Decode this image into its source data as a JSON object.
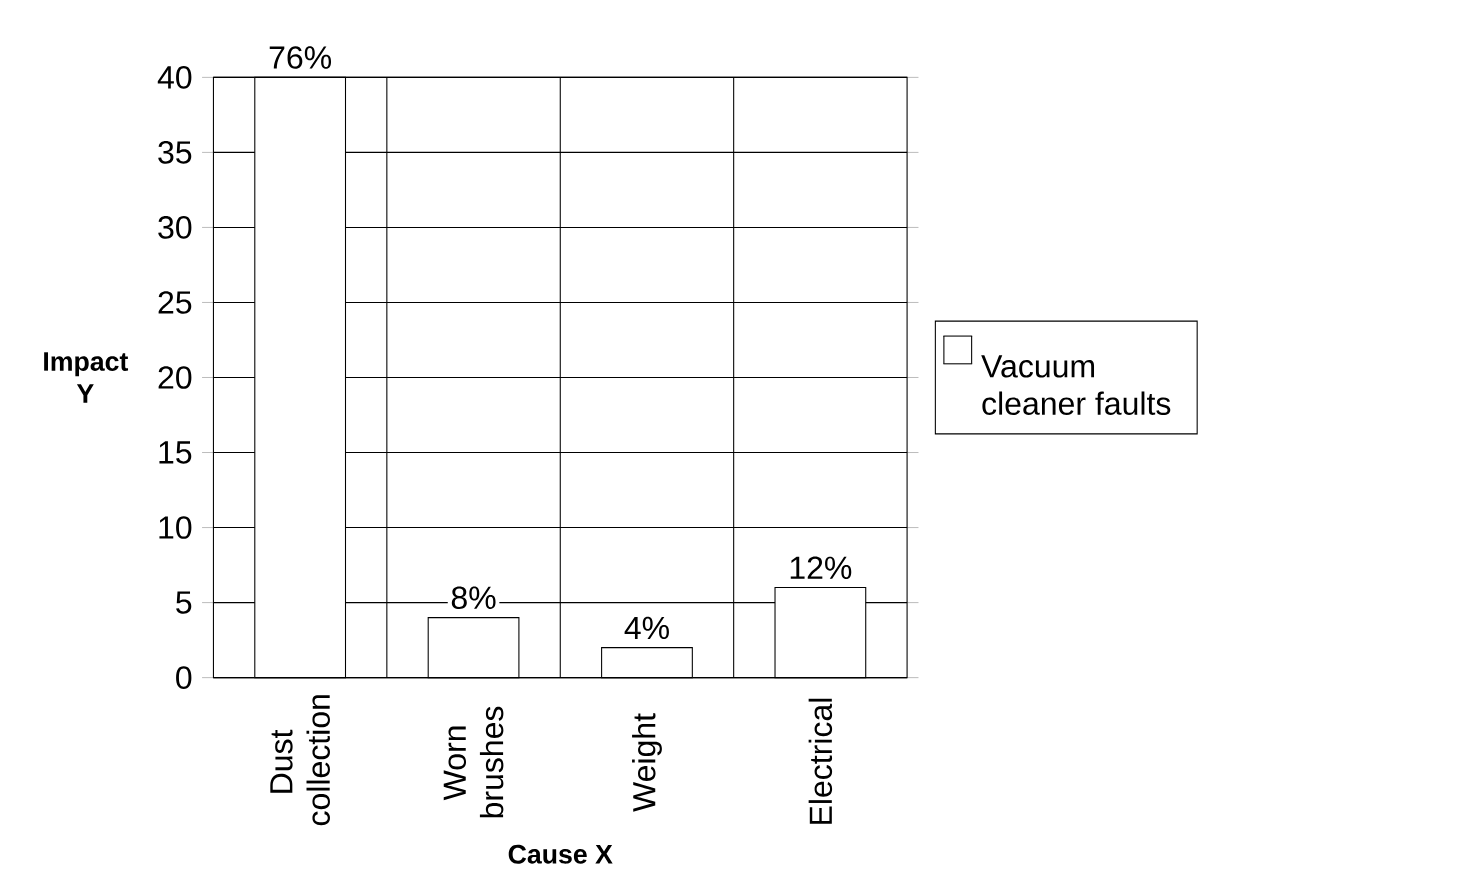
{
  "chart_data": {
    "type": "bar",
    "xlabel": "Cause X",
    "ylabel": "Impact Y",
    "categories": [
      "Dust collection",
      "Worn brushes",
      "Weight",
      "Electrical"
    ],
    "series": [
      {
        "name": "Vacuum cleaner faults",
        "color": "#ffffff",
        "values": [
          40,
          4,
          2,
          6
        ]
      }
    ],
    "annotations": [
      {
        "text": "76%",
        "x": "Dust collection",
        "y": 40
      },
      {
        "text": "8%",
        "x": "Worn brushes",
        "y": 4
      },
      {
        "text": "4%",
        "x": "Weight",
        "y": 2
      },
      {
        "text": "12%",
        "x": "Electrical",
        "y": 6
      }
    ],
    "ylim": [
      0,
      40
    ],
    "yticks": [
      0,
      5,
      10,
      15,
      20,
      25,
      30,
      35,
      40
    ],
    "grid": true,
    "legend": "right"
  }
}
